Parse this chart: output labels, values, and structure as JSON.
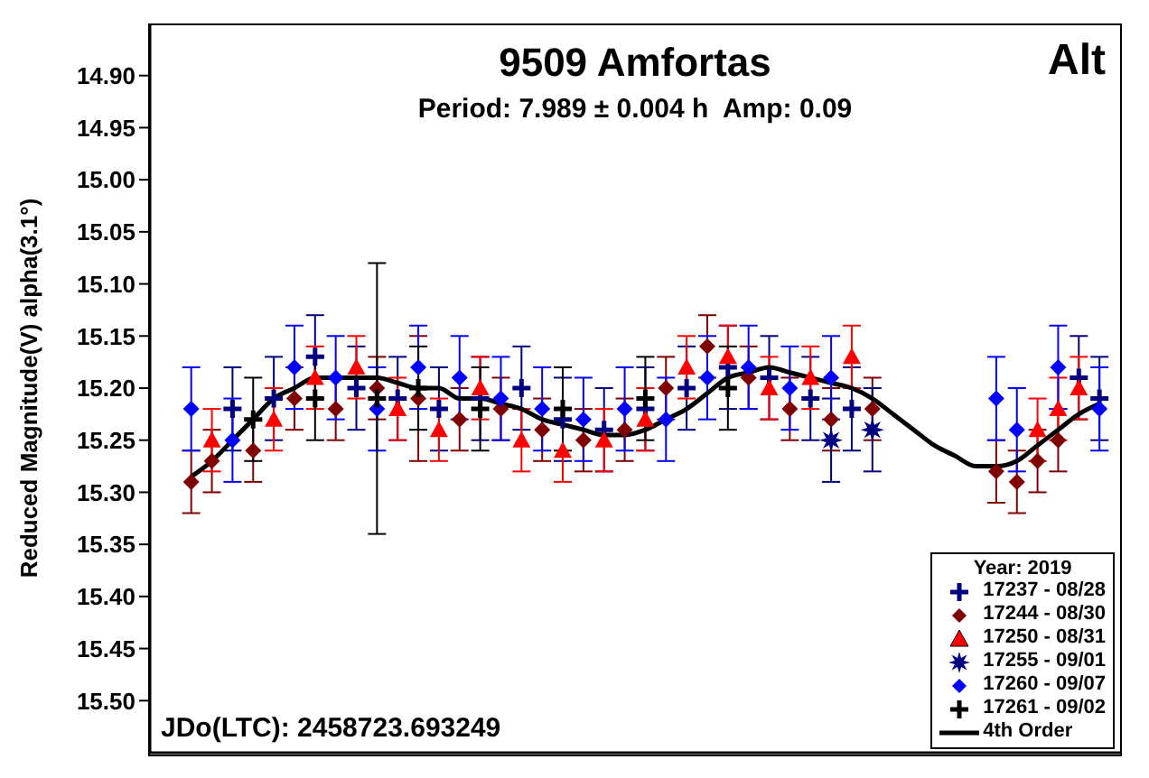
{
  "chart_data": {
    "type": "scatter",
    "title": "9509 Amfortas",
    "subtitle": "Period: 7.989 ± 0.004 h  Amp: 0.09",
    "ylabel": "Reduced Magnitude(V) alpha(3.1°)",
    "legend_title": "Year: 2019",
    "annotations": [
      "Alt",
      "JDo(LTC): 2458723.693249"
    ],
    "categories": [
      null,
      null,
      null,
      null,
      null,
      null,
      null,
      null,
      null,
      null,
      null,
      null,
      null,
      null,
      null,
      null,
      null,
      null,
      null,
      null,
      null,
      null,
      null,
      null,
      null,
      null,
      null,
      null,
      null,
      null,
      null,
      null,
      null,
      null,
      null,
      null,
      null,
      null,
      null,
      null,
      null,
      null,
      null,
      null,
      null,
      null,
      null,
      null
    ],
    "ylim": [
      15.55,
      14.85
    ],
    "yticks": [
      {
        "value": 14.9,
        "label": "14.90"
      },
      {
        "value": 14.95,
        "label": "14.95"
      },
      {
        "value": 15.0,
        "label": "15.00"
      },
      {
        "value": 15.05,
        "label": "15.05"
      },
      {
        "value": 15.1,
        "label": "15.10"
      },
      {
        "value": 15.15,
        "label": "15.15"
      },
      {
        "value": 15.2,
        "label": "15.20"
      },
      {
        "value": 15.25,
        "label": "15.25"
      },
      {
        "value": 15.3,
        "label": "15.30"
      },
      {
        "value": 15.35,
        "label": "15.35"
      },
      {
        "value": 15.4,
        "label": "15.40"
      },
      {
        "value": 15.45,
        "label": "15.45"
      },
      {
        "value": 15.5,
        "label": "15.50"
      }
    ],
    "tick_labels": "y",
    "legend": "bottom right",
    "series": [
      {
        "name": "17237 - 08/28",
        "color": "#000080",
        "marker": "cross",
        "values": [
          null,
          null,
          null,
          null,
          15.22,
          null,
          15.21,
          null,
          15.17,
          null,
          15.2,
          null,
          15.21,
          null,
          15.22,
          null,
          15.21,
          null,
          15.2,
          null,
          15.23,
          null,
          15.24,
          null,
          15.22,
          null,
          15.2,
          null,
          15.18,
          null,
          15.19,
          null,
          15.21,
          null,
          15.22,
          null,
          null,
          null,
          null,
          null,
          null,
          null,
          null,
          null,
          null,
          15.19,
          15.21,
          null
        ],
        "errors": [
          null,
          null,
          null,
          null,
          0.04,
          null,
          0.04,
          null,
          0.04,
          null,
          0.04,
          null,
          0.04,
          null,
          0.04,
          null,
          0.04,
          null,
          0.04,
          null,
          0.04,
          null,
          0.04,
          null,
          0.04,
          null,
          0.04,
          null,
          0.04,
          null,
          0.04,
          null,
          0.04,
          null,
          0.04,
          null,
          null,
          null,
          null,
          null,
          null,
          null,
          null,
          null,
          null,
          0.04,
          0.04,
          null
        ]
      },
      {
        "name": "17244 - 08/30",
        "color": "#800000",
        "marker": "diamond",
        "values": [
          null,
          null,
          15.29,
          15.27,
          null,
          15.26,
          null,
          15.21,
          null,
          15.22,
          null,
          15.2,
          null,
          15.21,
          null,
          15.23,
          null,
          15.22,
          null,
          15.24,
          null,
          15.25,
          null,
          15.24,
          null,
          15.2,
          null,
          15.16,
          null,
          15.19,
          null,
          15.22,
          null,
          15.23,
          null,
          15.22,
          null,
          null,
          null,
          null,
          null,
          15.28,
          15.29,
          15.27,
          15.25,
          null,
          null,
          null
        ],
        "errors": [
          null,
          null,
          0.03,
          0.03,
          null,
          0.03,
          null,
          0.03,
          null,
          0.03,
          null,
          0.03,
          null,
          0.06,
          null,
          0.03,
          null,
          0.03,
          null,
          0.03,
          null,
          0.03,
          null,
          0.03,
          null,
          0.03,
          null,
          0.03,
          null,
          0.03,
          null,
          0.03,
          null,
          0.03,
          null,
          0.03,
          null,
          null,
          null,
          null,
          null,
          0.03,
          0.03,
          0.03,
          0.03,
          null,
          null,
          null
        ]
      },
      {
        "name": "17250 - 08/31",
        "color": "#ff0000",
        "marker": "triangle",
        "values": [
          null,
          null,
          null,
          15.25,
          null,
          null,
          15.23,
          null,
          15.19,
          null,
          15.18,
          null,
          15.22,
          null,
          15.24,
          null,
          15.2,
          null,
          15.25,
          null,
          15.26,
          null,
          15.25,
          null,
          15.23,
          null,
          15.18,
          null,
          15.17,
          null,
          15.2,
          null,
          15.19,
          null,
          15.17,
          null,
          null,
          null,
          null,
          null,
          null,
          null,
          null,
          15.24,
          15.22,
          15.2,
          null,
          null
        ],
        "errors": [
          null,
          null,
          null,
          0.03,
          null,
          null,
          0.03,
          null,
          0.03,
          null,
          0.03,
          null,
          0.03,
          null,
          0.03,
          null,
          0.03,
          null,
          0.03,
          null,
          0.03,
          null,
          0.03,
          null,
          0.03,
          null,
          0.03,
          null,
          0.03,
          null,
          0.03,
          null,
          0.03,
          null,
          0.03,
          null,
          null,
          null,
          null,
          null,
          null,
          null,
          null,
          0.03,
          0.03,
          0.03,
          null,
          null
        ]
      },
      {
        "name": "17255 - 09/01",
        "color": "#000080",
        "marker": "star",
        "values": [
          null,
          null,
          null,
          null,
          null,
          null,
          null,
          null,
          null,
          null,
          null,
          null,
          null,
          null,
          null,
          null,
          null,
          null,
          null,
          null,
          null,
          null,
          null,
          null,
          null,
          null,
          null,
          null,
          null,
          null,
          null,
          null,
          null,
          15.25,
          null,
          15.24,
          null,
          null,
          null,
          null,
          null,
          null,
          null,
          null,
          null,
          null,
          null,
          null
        ],
        "errors": [
          null,
          null,
          null,
          null,
          null,
          null,
          null,
          null,
          null,
          null,
          null,
          null,
          null,
          null,
          null,
          null,
          null,
          null,
          null,
          null,
          null,
          null,
          null,
          null,
          null,
          null,
          null,
          null,
          null,
          null,
          null,
          null,
          null,
          0.04,
          null,
          0.04,
          null,
          null,
          null,
          null,
          null,
          null,
          null,
          null,
          null,
          null,
          null,
          null
        ]
      },
      {
        "name": "17260 - 09/07",
        "color": "#0000ff",
        "marker": "diamond",
        "values": [
          null,
          null,
          15.22,
          null,
          15.25,
          null,
          null,
          15.18,
          null,
          15.19,
          null,
          15.22,
          null,
          15.18,
          null,
          15.19,
          null,
          15.21,
          null,
          15.22,
          null,
          15.23,
          null,
          15.22,
          null,
          15.23,
          null,
          15.19,
          null,
          15.18,
          null,
          15.2,
          null,
          15.19,
          null,
          null,
          null,
          null,
          null,
          null,
          null,
          15.21,
          15.24,
          null,
          15.18,
          null,
          15.22,
          null
        ],
        "errors": [
          null,
          null,
          0.04,
          null,
          0.04,
          null,
          null,
          0.04,
          null,
          0.04,
          null,
          0.04,
          null,
          0.04,
          null,
          0.04,
          null,
          0.04,
          null,
          0.04,
          null,
          0.04,
          null,
          0.04,
          null,
          0.04,
          null,
          0.04,
          null,
          0.04,
          null,
          0.04,
          null,
          0.04,
          null,
          null,
          null,
          null,
          null,
          null,
          null,
          0.04,
          0.04,
          null,
          0.04,
          null,
          0.04,
          null
        ]
      },
      {
        "name": "17261 - 09/02",
        "color": "#000000",
        "marker": "cross",
        "values": [
          null,
          null,
          null,
          null,
          null,
          15.23,
          null,
          null,
          15.21,
          null,
          null,
          15.21,
          null,
          15.2,
          null,
          null,
          15.22,
          null,
          null,
          null,
          15.22,
          null,
          null,
          null,
          15.21,
          null,
          null,
          null,
          15.2,
          null,
          null,
          null,
          null,
          null,
          null,
          null,
          null,
          null,
          null,
          null,
          null,
          null,
          null,
          null,
          null,
          null,
          null,
          null
        ],
        "errors": [
          null,
          null,
          null,
          null,
          null,
          0.04,
          null,
          null,
          0.04,
          null,
          null,
          0.13,
          null,
          0.04,
          null,
          null,
          0.04,
          null,
          null,
          null,
          0.04,
          null,
          null,
          null,
          0.04,
          null,
          null,
          null,
          0.04,
          null,
          null,
          null,
          null,
          null,
          null,
          null,
          null,
          null,
          null,
          null,
          null,
          null,
          null,
          null,
          null,
          null,
          null,
          null
        ]
      },
      {
        "name": "4th Order",
        "type": "line",
        "color": "#000000",
        "marker": "none",
        "values": [
          null,
          null,
          15.285,
          15.27,
          15.25,
          15.23,
          15.21,
          15.2,
          15.19,
          15.19,
          15.19,
          15.19,
          15.195,
          15.2,
          15.2,
          15.21,
          15.21,
          15.215,
          15.22,
          15.23,
          15.235,
          15.24,
          15.245,
          15.245,
          15.24,
          15.23,
          15.22,
          15.205,
          15.19,
          15.185,
          15.18,
          15.185,
          15.19,
          15.195,
          15.2,
          15.21,
          15.225,
          15.24,
          15.255,
          15.265,
          15.275,
          15.275,
          15.27,
          15.255,
          15.24,
          15.225,
          15.215,
          null
        ]
      }
    ]
  }
}
